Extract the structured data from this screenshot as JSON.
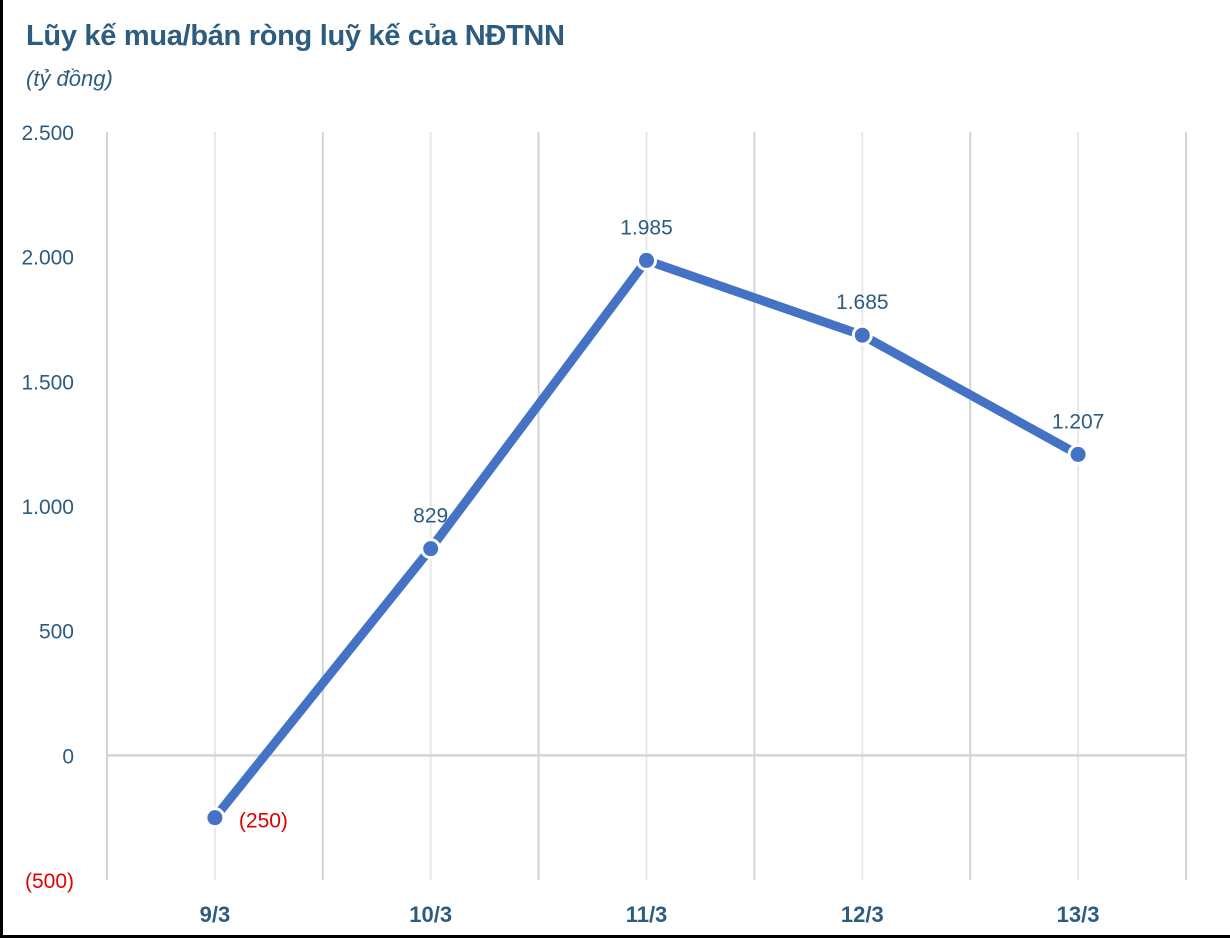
{
  "header": {
    "title": "Lũy kế mua/bán ròng luỹ kế của NĐTNN",
    "subtitle": "(tỷ đồng)"
  },
  "colors": {
    "line": "#4472c4",
    "text": "#2e5c7e",
    "negative": "#e00000",
    "grid": "#d9d9d9"
  },
  "chart_data": {
    "type": "line",
    "title": "Lũy kế mua/bán ròng luỹ kế của NĐTNN",
    "subtitle": "(tỷ đồng)",
    "xlabel": "",
    "ylabel": "tỷ đồng",
    "categories": [
      "9/3",
      "10/3",
      "11/3",
      "12/3",
      "13/3"
    ],
    "series": [
      {
        "name": "Lũy kế mua/bán ròng",
        "values": [
          -250,
          829,
          1985,
          1685,
          1207
        ],
        "labels": [
          "(250)",
          "829",
          "1.985",
          "1.685",
          "1.207"
        ]
      }
    ],
    "ylim": [
      -500,
      2500
    ],
    "yticks": [
      2500,
      2000,
      1500,
      1000,
      500,
      0,
      -500
    ],
    "ytick_labels": [
      "2.500",
      "2.000",
      "1.500",
      "1.000",
      "500",
      "0",
      "(500)"
    ],
    "grid": true,
    "legend": "none",
    "markers": true
  }
}
